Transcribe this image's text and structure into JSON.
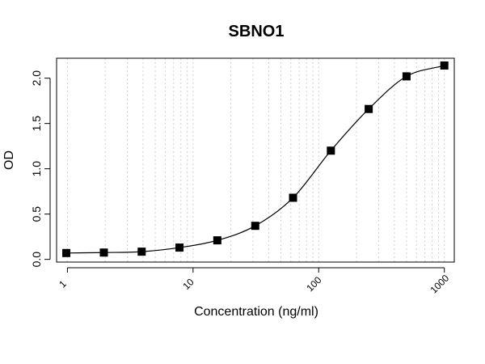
{
  "chart_data": {
    "type": "scatter",
    "title": "SBNO1",
    "xlabel": "Concentration (ng/ml)",
    "ylabel": "OD",
    "x_scale": "log",
    "xlim": [
      0.82,
      1200
    ],
    "ylim": [
      -0.03,
      2.22
    ],
    "x_ticks": [
      "1",
      "10",
      "100",
      "1000"
    ],
    "y_ticks": [
      "0.0",
      "0.5",
      "1.0",
      "1.5",
      "2.0"
    ],
    "grid": "vertical dotted at minor log ticks",
    "series": [
      {
        "marker": "filled-square",
        "fit": "4-parameter logistic curve",
        "x": [
          0.98,
          1.95,
          3.9,
          7.8,
          15.6,
          31.25,
          62.5,
          125,
          250,
          500,
          1000
        ],
        "y": [
          0.07,
          0.075,
          0.085,
          0.13,
          0.21,
          0.37,
          0.68,
          1.2,
          1.66,
          2.02,
          2.14
        ]
      }
    ],
    "colors": {
      "marker": "#000000",
      "line": "#000000",
      "grid": "#d0d0d0"
    }
  }
}
